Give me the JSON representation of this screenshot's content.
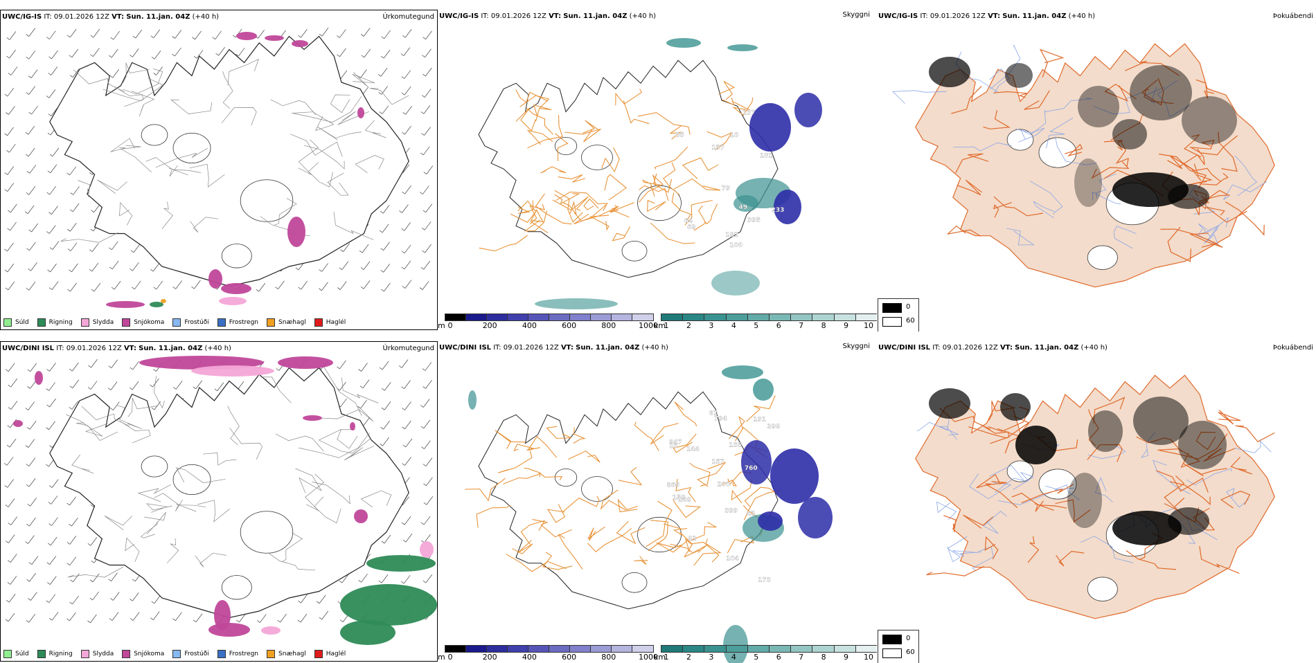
{
  "panels": [
    {
      "model": "UWC/IG-IS",
      "it_label": "IT:",
      "it_value": "09.01.2026 12Z",
      "vt_label": "VT:",
      "vt_value": "Sun. 11.jan. 04Z",
      "lead": "(+40 h)",
      "precip_title": "Úrkomutegund",
      "vis_title": "Skyggni",
      "fog_title": "Þokuábendi"
    },
    {
      "model": "UWC/DINI ISL",
      "it_label": "IT:",
      "it_value": "09.01.2026 12Z",
      "vt_label": "VT:",
      "vt_value": "Sun. 11.jan. 04Z",
      "lead": "(+40 h)",
      "precip_title": "Úrkomutegund",
      "vis_title": "Skyggni",
      "fog_title": "Þokuábendi"
    }
  ],
  "precip_legend": [
    {
      "label": "Súld",
      "color": "#90ee90"
    },
    {
      "label": "Rigning",
      "color": "#2e8b57"
    },
    {
      "label": "Slydda",
      "color": "#f4a6d7"
    },
    {
      "label": "Snjókoma",
      "color": "#c0479a"
    },
    {
      "label": "Frostúði",
      "color": "#87b8f0"
    },
    {
      "label": "Frostregn",
      "color": "#3a6fc4"
    },
    {
      "label": "Snæhagl",
      "color": "#f0a020"
    },
    {
      "label": "Haglél",
      "color": "#e01b1b"
    }
  ],
  "vis_colorbar": {
    "unit_m": "m",
    "ticks_m": [
      "0",
      "200",
      "400",
      "600",
      "800",
      "1000"
    ],
    "unit_km": "km",
    "ticks_km": [
      "1",
      "2",
      "3",
      "4",
      "5",
      "6",
      "7",
      "8",
      "9",
      "10"
    ],
    "colors_m": [
      "#000000",
      "#1a1a8c",
      "#2d2d9e",
      "#4040ad",
      "#5555b8",
      "#6b6bc2",
      "#8080cc",
      "#9b9bd6",
      "#b5b5e0",
      "#d0d0ea"
    ],
    "colors_km": [
      "#1f7a78",
      "#2a8785",
      "#3a9290",
      "#4c9e9b",
      "#62aba8",
      "#7ab8b5",
      "#93c6c3",
      "#aed4d2",
      "#c8e2e0",
      "#e4f0ef"
    ]
  },
  "fog_legend": {
    "values": [
      "0",
      "60"
    ],
    "colors": [
      "#000000",
      "#ffffff"
    ]
  },
  "vis_labels_row1": [
    "49",
    "85",
    "64",
    "137",
    "10",
    "69",
    "79",
    "233",
    "101",
    "157",
    "100",
    "182",
    "395"
  ],
  "vis_labels_row2": [
    "865",
    "794",
    "760",
    "398",
    "847",
    "173",
    "168",
    "135",
    "157",
    "191",
    "200",
    "43",
    "81",
    "16",
    "144",
    "83",
    "104",
    "159",
    "399"
  ],
  "colors": {
    "land_fog": "#f3dccb",
    "road": "#e06a2b",
    "road_vis": "#e8943a",
    "river": "#8aa6e8",
    "snow": "#c0479a",
    "rain": "#2e8b57",
    "sleet": "#f4a6d7",
    "vis_blue": "#2d2da8",
    "vis_teal": "#3a9290"
  }
}
